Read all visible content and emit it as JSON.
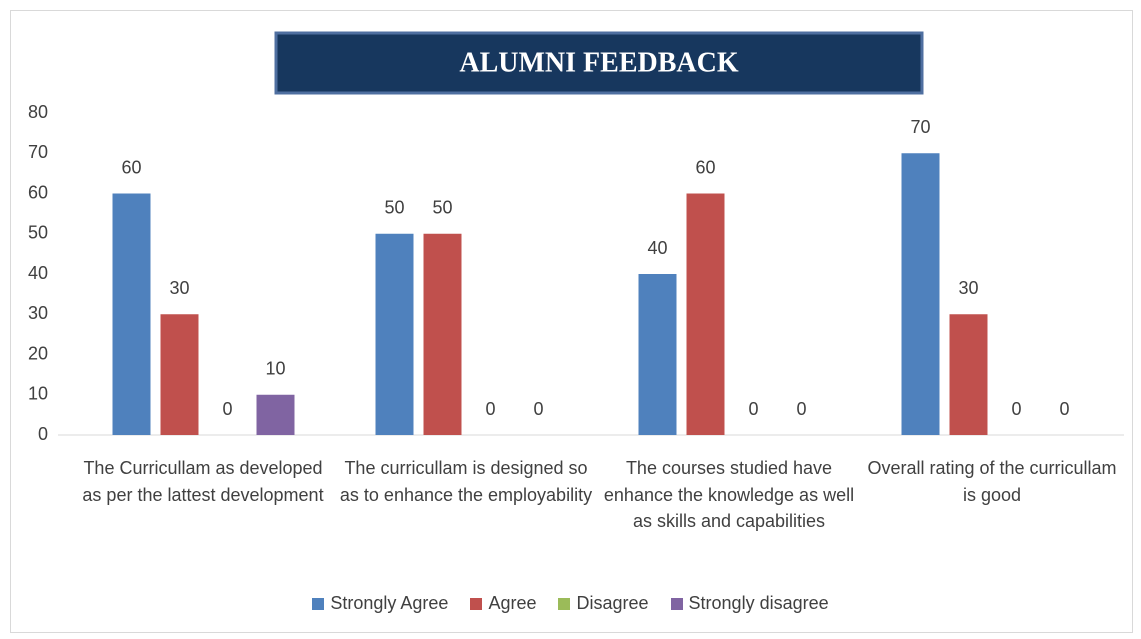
{
  "chart_data": {
    "type": "bar",
    "title": "ALUMNI FEEDBACK",
    "categories": [
      "The Curricullam as developed as per the lattest development",
      "The curricullam is designed so as to enhance the employability",
      "The courses studied have enhance the knowledge as well as skills and capabilities",
      "Overall rating of the curricullam is good"
    ],
    "series": [
      {
        "name": "Strongly Agree",
        "color": "#4f81bd",
        "values": [
          60,
          50,
          40,
          70
        ]
      },
      {
        "name": "Agree",
        "color": "#c0504d",
        "values": [
          30,
          50,
          60,
          30
        ]
      },
      {
        "name": "Disagree",
        "color": "#9bbb59",
        "values": [
          0,
          0,
          0,
          0
        ]
      },
      {
        "name": "Strongly disagree",
        "color": "#8064a2",
        "values": [
          10,
          0,
          0,
          0
        ]
      }
    ],
    "ylim": [
      0,
      80
    ],
    "yticks": [
      0,
      10,
      20,
      30,
      40,
      50,
      60,
      70,
      80
    ],
    "grid": false,
    "legend": "bottom"
  }
}
